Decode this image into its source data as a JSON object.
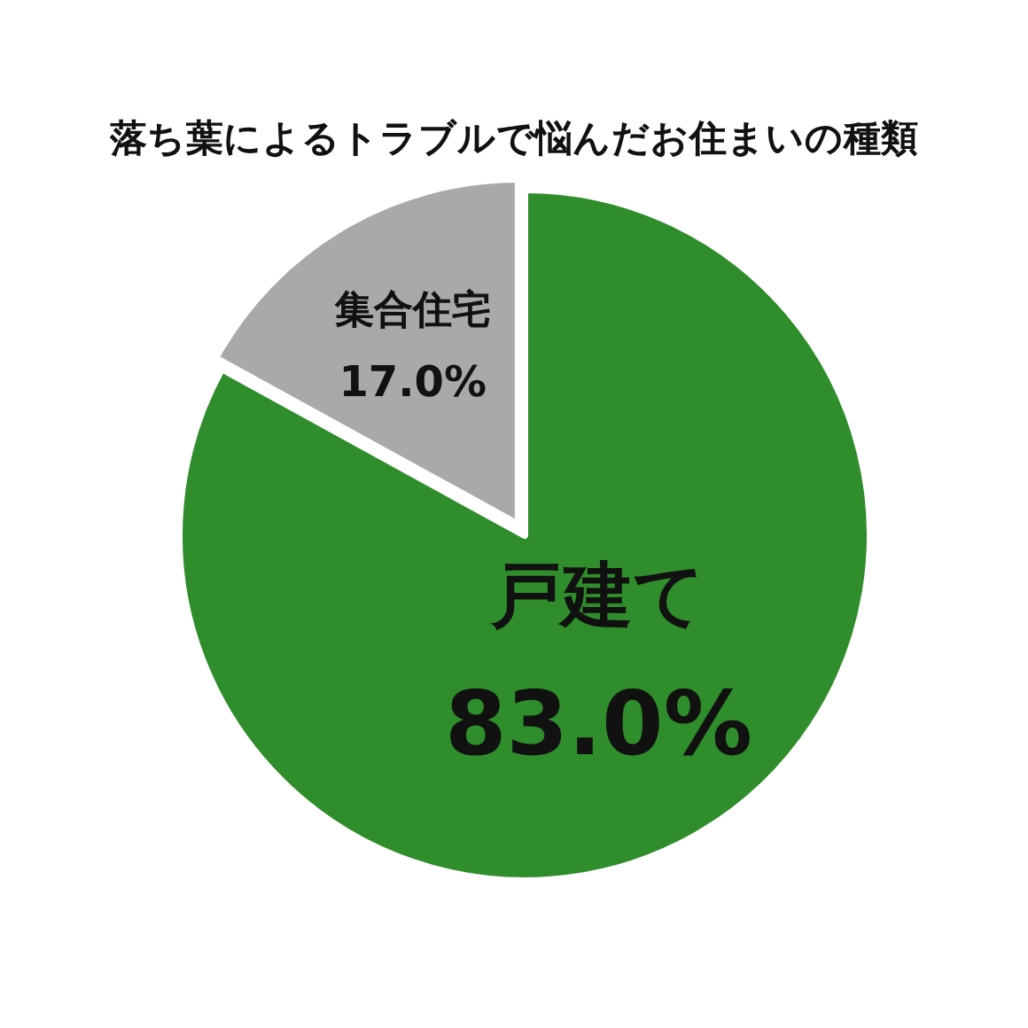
{
  "chart_data": {
    "type": "pie",
    "title": "落ち葉によるトラブルで悩んだお住まいの種類",
    "categories": [
      "戸建て",
      "集合住宅"
    ],
    "values": [
      83.0,
      17.0
    ],
    "colors": [
      "#2f8d2c",
      "#a9a9a9"
    ],
    "value_labels": [
      "83.0%",
      "17.0%"
    ]
  }
}
